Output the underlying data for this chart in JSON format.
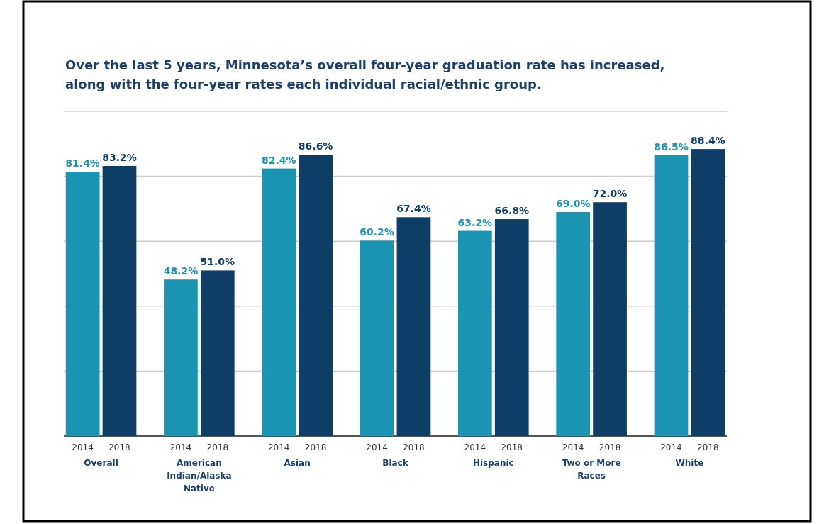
{
  "chart_data": {
    "type": "bar",
    "title": "Over the last 5 years, Minnesota’s overall four-year graduation rate has increased, along with the four-year rates each individual racial/ethnic group.",
    "categories": [
      "Overall",
      "American Indian/Alaska Native",
      "Asian",
      "Black",
      "Hispanic",
      "Two or More Races",
      "White"
    ],
    "series": [
      {
        "name": "2014",
        "color": "#1b93b3",
        "values": [
          81.4,
          48.2,
          82.4,
          60.2,
          63.2,
          69.0,
          86.5
        ],
        "value_labels": [
          "81.4%",
          "48.2%",
          "82.4%",
          "60.2%",
          "63.2%",
          "69.0%",
          "86.5%"
        ]
      },
      {
        "name": "2018",
        "color": "#0e3d66",
        "values": [
          83.2,
          51.0,
          86.6,
          67.4,
          66.8,
          72.0,
          88.4
        ],
        "value_labels": [
          "83.2%",
          "51.0%",
          "86.6%",
          "67.4%",
          "66.8%",
          "72.0%",
          "88.4%"
        ]
      }
    ],
    "ylim": [
      0,
      100
    ],
    "yticks": [
      {
        "value": 0,
        "label": null
      },
      {
        "value": 20,
        "label": null
      },
      {
        "value": 40,
        "label": null
      },
      {
        "value": 60,
        "label": null
      },
      {
        "value": 80,
        "label": null
      },
      {
        "value": 100,
        "label": null
      }
    ],
    "grid": "y",
    "tick_labels": "x"
  }
}
